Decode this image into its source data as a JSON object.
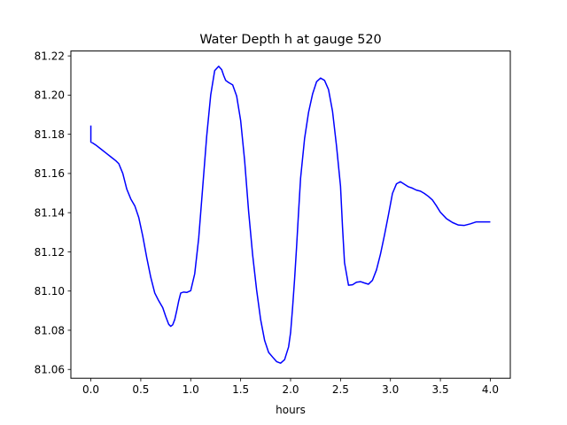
{
  "chart_data": {
    "type": "line",
    "title": "Water Depth h at gauge 520",
    "xlabel": "hours",
    "ylabel": "",
    "xlim": [
      -0.2,
      4.2
    ],
    "ylim": [
      81.0555,
      81.2225
    ],
    "xticks": [
      0.0,
      0.5,
      1.0,
      1.5,
      2.0,
      2.5,
      3.0,
      3.5,
      4.0
    ],
    "xtick_labels": [
      "0.0",
      "0.5",
      "1.0",
      "1.5",
      "2.0",
      "2.5",
      "3.0",
      "3.5",
      "4.0"
    ],
    "yticks": [
      81.06,
      81.08,
      81.1,
      81.12,
      81.14,
      81.16,
      81.18,
      81.2,
      81.22
    ],
    "ytick_labels": [
      "81.06",
      "81.08",
      "81.10",
      "81.12",
      "81.14",
      "81.16",
      "81.18",
      "81.20",
      "81.22"
    ],
    "grid": false,
    "series": [
      {
        "color": "#0000ff",
        "x": [
          0.0,
          0.0,
          0.0,
          0.02,
          0.05,
          0.1,
          0.15,
          0.2,
          0.25,
          0.28,
          0.32,
          0.36,
          0.4,
          0.44,
          0.48,
          0.52,
          0.56,
          0.6,
          0.64,
          0.68,
          0.72,
          0.75,
          0.78,
          0.8,
          0.82,
          0.84,
          0.86,
          0.88,
          0.9,
          0.93,
          0.96,
          1.0,
          1.04,
          1.08,
          1.12,
          1.16,
          1.2,
          1.24,
          1.28,
          1.31,
          1.33,
          1.35,
          1.38,
          1.42,
          1.46,
          1.5,
          1.54,
          1.58,
          1.62,
          1.66,
          1.7,
          1.74,
          1.78,
          1.82,
          1.86,
          1.9,
          1.94,
          1.98,
          2.0,
          2.02,
          2.04,
          2.06,
          2.08,
          2.1,
          2.14,
          2.18,
          2.22,
          2.26,
          2.3,
          2.34,
          2.38,
          2.42,
          2.46,
          2.5,
          2.52,
          2.54,
          2.58,
          2.62,
          2.66,
          2.7,
          2.74,
          2.78,
          2.82,
          2.86,
          2.9,
          2.94,
          2.98,
          3.02,
          3.06,
          3.1,
          3.14,
          3.18,
          3.22,
          3.26,
          3.3,
          3.34,
          3.38,
          3.42,
          3.46,
          3.5,
          3.56,
          3.62,
          3.68,
          3.74,
          3.8,
          3.86,
          3.9,
          3.94,
          3.97,
          4.0
        ],
        "y": [
          81.1845,
          81.1775,
          81.176,
          81.1755,
          81.1745,
          81.1725,
          81.1705,
          81.1685,
          81.1665,
          81.165,
          81.16,
          81.152,
          81.147,
          81.1435,
          81.1375,
          81.128,
          81.117,
          81.107,
          81.099,
          81.095,
          81.0915,
          81.087,
          81.083,
          81.082,
          81.0828,
          81.0855,
          81.09,
          81.095,
          81.099,
          81.0995,
          81.0993,
          81.1002,
          81.1088,
          81.127,
          81.153,
          81.179,
          81.2,
          81.2125,
          81.2147,
          81.213,
          81.21,
          81.2075,
          81.2064,
          81.2052,
          81.1995,
          81.187,
          81.1665,
          81.1405,
          81.1185,
          81.1005,
          81.0855,
          81.0748,
          81.0687,
          81.0663,
          81.064,
          81.0632,
          81.065,
          81.0715,
          81.0788,
          81.0915,
          81.106,
          81.1225,
          81.1404,
          81.1575,
          81.1778,
          81.1912,
          81.2005,
          81.2068,
          81.2087,
          81.2075,
          81.2028,
          81.1917,
          81.174,
          81.1535,
          81.1326,
          81.1145,
          81.103,
          81.1032,
          81.1045,
          81.1048,
          81.1041,
          81.1035,
          81.1055,
          81.1108,
          81.1188,
          81.1285,
          81.1389,
          81.1498,
          81.1547,
          81.1558,
          81.1545,
          81.1532,
          81.1525,
          81.1515,
          81.151,
          81.1498,
          81.1483,
          81.1465,
          81.1435,
          81.1402,
          81.137,
          81.135,
          81.1337,
          81.1335,
          81.1343,
          81.1353,
          81.1353,
          81.1353,
          81.1353,
          81.1353
        ]
      }
    ]
  }
}
